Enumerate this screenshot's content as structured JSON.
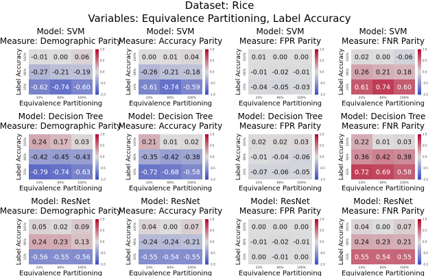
{
  "figure": {
    "title_line1": "Dataset: Rice",
    "title_line2": "Variables: Equivalence Partitioning, Label Accuracy"
  },
  "colorbar_ticks": [
    "1.0",
    "0.5",
    "0.0",
    "-0.5",
    "-1.0"
  ],
  "chart_data": [
    {
      "type": "heatmap",
      "model": "Model: SVM",
      "measure": "Measure: Demographic Parity",
      "xlabel": "Equivalence Partitioning",
      "ylabel": "Label Accuracy",
      "x_ticks": [
        "33%",
        "66%",
        "100%"
      ],
      "y_ticks": [
        "100%",
        "66%",
        "33%"
      ],
      "values": [
        [
          -0.01,
          0.0,
          0.06
        ],
        [
          -0.27,
          -0.21,
          -0.19
        ],
        [
          -0.62,
          -0.74,
          -0.6
        ]
      ],
      "vlim": [
        -1,
        1
      ]
    },
    {
      "type": "heatmap",
      "model": "Model: SVM",
      "measure": "Measure: Accuracy Parity",
      "xlabel": "Equivalence Partitioning",
      "ylabel": "Label Accuracy",
      "x_ticks": [
        "33%",
        "66%",
        "100%"
      ],
      "y_ticks": [
        "100%",
        "66%",
        "33%"
      ],
      "values": [
        [
          0.0,
          0.01,
          0.04
        ],
        [
          -0.26,
          -0.21,
          -0.18
        ],
        [
          -0.61,
          -0.74,
          -0.59
        ]
      ],
      "vlim": [
        -1,
        1
      ]
    },
    {
      "type": "heatmap",
      "model": "Model: SVM",
      "measure": "Measure: FPR Parity",
      "xlabel": "Equivalence Partitioning",
      "ylabel": "Label Accuracy",
      "x_ticks": [
        "33%",
        "66%",
        "100%"
      ],
      "y_ticks": [
        "100%",
        "66%",
        "33%"
      ],
      "values": [
        [
          0.01,
          0.0,
          0.0
        ],
        [
          -0.01,
          -0.02,
          -0.01
        ],
        [
          -0.04,
          -0.05,
          -0.03
        ]
      ],
      "vlim": [
        -1,
        1
      ]
    },
    {
      "type": "heatmap",
      "model": "Model: SVM",
      "measure": "Measure: FNR Parity",
      "xlabel": "Equivalence Partitioning",
      "ylabel": "Label Accuracy",
      "x_ticks": [
        "33%",
        "66%",
        "100%"
      ],
      "y_ticks": [
        "100%",
        "66%",
        "33%"
      ],
      "values": [
        [
          0.02,
          0.0,
          -0.06
        ],
        [
          0.26,
          0.21,
          0.18
        ],
        [
          0.61,
          0.74,
          0.6
        ]
      ],
      "vlim": [
        -1,
        1
      ]
    },
    {
      "type": "heatmap",
      "model": "Model: Decision Tree",
      "measure": "Measure: Demographic Parity",
      "xlabel": "Equivalence Partitioning",
      "ylabel": "Label Accuracy",
      "x_ticks": [
        "33%",
        "66%",
        "100%"
      ],
      "y_ticks": [
        "100%",
        "66%",
        "33%"
      ],
      "values": [
        [
          0.24,
          0.17,
          0.03
        ],
        [
          -0.42,
          -0.45,
          -0.43
        ],
        [
          -0.79,
          -0.74,
          -0.63
        ]
      ],
      "vlim": [
        -1,
        1
      ]
    },
    {
      "type": "heatmap",
      "model": "Model: Decision Tree",
      "measure": "Measure: Accuracy Parity",
      "xlabel": "Equivalence Partitioning",
      "ylabel": "Label Accuracy",
      "x_ticks": [
        "33%",
        "66%",
        "100%"
      ],
      "y_ticks": [
        "100%",
        "66%",
        "33%"
      ],
      "values": [
        [
          0.21,
          0.01,
          0.02
        ],
        [
          -0.35,
          -0.42,
          -0.38
        ],
        [
          -0.72,
          -0.68,
          -0.58
        ]
      ],
      "vlim": [
        -1,
        1
      ]
    },
    {
      "type": "heatmap",
      "model": "Model: Decision Tree",
      "measure": "Measure: FPR Parity",
      "xlabel": "Equivalence Partitioning",
      "ylabel": "Label Accuracy",
      "x_ticks": [
        "33%",
        "66%",
        "100%"
      ],
      "y_ticks": [
        "100%",
        "66%",
        "33%"
      ],
      "values": [
        [
          0.02,
          0.02,
          0.03
        ],
        [
          -0.01,
          -0.04,
          -0.06
        ],
        [
          -0.07,
          -0.06,
          -0.05
        ]
      ],
      "vlim": [
        -1,
        1
      ]
    },
    {
      "type": "heatmap",
      "model": "Model: Decision Tree",
      "measure": "Measure: FNR Parity",
      "xlabel": "Equivalence Partitioning",
      "ylabel": "Label Accuracy",
      "x_ticks": [
        "33%",
        "66%",
        "100%"
      ],
      "y_ticks": [
        "100%",
        "66%",
        "33%"
      ],
      "values": [
        [
          0.22,
          0.01,
          0.03
        ],
        [
          0.36,
          0.42,
          0.38
        ],
        [
          0.72,
          0.69,
          0.58
        ]
      ],
      "vlim": [
        -1,
        1
      ]
    },
    {
      "type": "heatmap",
      "model": "Model: ResNet",
      "measure": "Measure: Demographic Parity",
      "xlabel": "Equivalence Partitioning",
      "ylabel": "Label Accuracy",
      "x_ticks": [
        "33%",
        "66%",
        "100%"
      ],
      "y_ticks": [
        "100%",
        "66%",
        "33%"
      ],
      "values": [
        [
          0.05,
          0.02,
          0.09
        ],
        [
          0.24,
          0.23,
          0.13
        ],
        [
          -0.56,
          -0.55,
          -0.56
        ]
      ],
      "vlim": [
        -1,
        1
      ]
    },
    {
      "type": "heatmap",
      "model": "Model: ResNet",
      "measure": "Measure: Accuracy Parity",
      "xlabel": "Equivalence Partitioning",
      "ylabel": "Label Accuracy",
      "x_ticks": [
        "33%",
        "66%",
        "100%"
      ],
      "y_ticks": [
        "100%",
        "66%",
        "33%"
      ],
      "values": [
        [
          0.04,
          0.0,
          0.07
        ],
        [
          -0.24,
          -0.24,
          -0.21
        ],
        [
          -0.55,
          -0.54,
          -0.55
        ]
      ],
      "vlim": [
        -1,
        1
      ]
    },
    {
      "type": "heatmap",
      "model": "Model: ResNet",
      "measure": "Measure: FPR Parity",
      "xlabel": "Equivalence Partitioning",
      "ylabel": "Label Accuracy",
      "x_ticks": [
        "33%",
        "66%",
        "100%"
      ],
      "y_ticks": [
        "100%",
        "66%",
        "33%"
      ],
      "values": [
        [
          0.0,
          0.0,
          0.0
        ],
        [
          -0.01,
          -0.02,
          -0.01
        ],
        [
          0.0,
          -0.01,
          0.0
        ]
      ],
      "vlim": [
        -1,
        1
      ]
    },
    {
      "type": "heatmap",
      "model": "Model: ResNet",
      "measure": "Measure: FNR Parity",
      "xlabel": "Equivalence Partitioning",
      "ylabel": "Label Accuracy",
      "x_ticks": [
        "33%",
        "66%",
        "100%"
      ],
      "y_ticks": [
        "100%",
        "66%",
        "33%"
      ],
      "values": [
        [
          0.04,
          0.0,
          0.07
        ],
        [
          0.24,
          0.23,
          0.21
        ],
        [
          0.55,
          0.54,
          0.55
        ]
      ],
      "vlim": [
        -1,
        1
      ]
    }
  ]
}
